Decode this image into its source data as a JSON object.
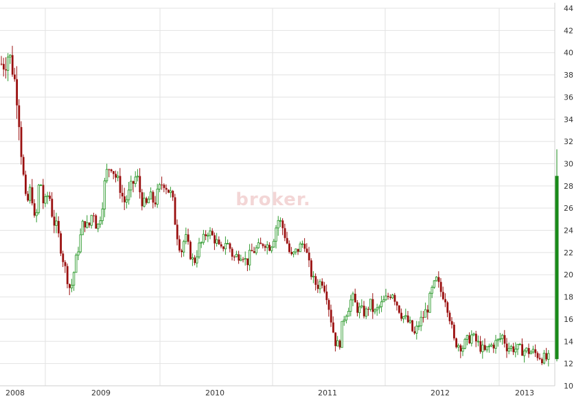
{
  "watermark": "broker.",
  "colors": {
    "up": "#2e9a2e",
    "down": "#9a0f0f",
    "grid": "#e2e2e2",
    "current_bar": "#1a8a1a",
    "background": "#ffffff"
  },
  "chart_data": {
    "type": "candlestick",
    "title": "",
    "xlabel": "",
    "ylabel": "",
    "ylim": [
      10,
      44
    ],
    "y_ticks": [
      10,
      12,
      14,
      16,
      18,
      20,
      22,
      24,
      26,
      28,
      30,
      32,
      34,
      36,
      38,
      40,
      42,
      44
    ],
    "x_labels": [
      "2008",
      "2009",
      "2010",
      "2011",
      "2012",
      "2013"
    ],
    "grid": true,
    "axis_position": "right",
    "series_path": [
      [
        "2008-01",
        39.0
      ],
      [
        "2008-01",
        40.0
      ],
      [
        "2008-02",
        38.0
      ],
      [
        "2008-02",
        35.5
      ],
      [
        "2008-03",
        30.0
      ],
      [
        "2008-03",
        26.0
      ],
      [
        "2008-04",
        28.0
      ],
      [
        "2008-04",
        24.0
      ],
      [
        "2008-05",
        29.0
      ],
      [
        "2008-05",
        26.0
      ],
      [
        "2008-06",
        27.5
      ],
      [
        "2008-06",
        25.0
      ],
      [
        "2008-07",
        24.0
      ],
      [
        "2008-07",
        22.0
      ],
      [
        "2008-08",
        20.0
      ],
      [
        "2008-08",
        18.5
      ],
      [
        "2008-09",
        21.0
      ],
      [
        "2008-09",
        23.0
      ],
      [
        "2008-10",
        25.0
      ],
      [
        "2008-10",
        24.0
      ],
      [
        "2008-11",
        26.0
      ],
      [
        "2008-11",
        24.0
      ],
      [
        "2008-12",
        26.0
      ],
      [
        "2008-12",
        29.0
      ],
      [
        "2009-01",
        30.0
      ],
      [
        "2009-01",
        29.0
      ],
      [
        "2009-02",
        28.0
      ],
      [
        "2009-02",
        26.5
      ],
      [
        "2009-03",
        27.0
      ],
      [
        "2009-03",
        28.0
      ],
      [
        "2009-04",
        29.0
      ],
      [
        "2009-04",
        27.0
      ],
      [
        "2009-05",
        26.0
      ],
      [
        "2009-05",
        27.0
      ],
      [
        "2009-06",
        26.5
      ],
      [
        "2009-07",
        28.5
      ],
      [
        "2009-08",
        27.0
      ],
      [
        "2009-08",
        24.0
      ],
      [
        "2009-09",
        22.0
      ],
      [
        "2009-09",
        23.5
      ],
      [
        "2009-10",
        22.0
      ],
      [
        "2009-10",
        21.0
      ],
      [
        "2009-11",
        22.5
      ],
      [
        "2009-11",
        23.0
      ],
      [
        "2009-12",
        24.0
      ],
      [
        "2010-01",
        23.0
      ],
      [
        "2010-01",
        22.0
      ],
      [
        "2010-02",
        23.0
      ],
      [
        "2010-02",
        22.5
      ],
      [
        "2010-03",
        21.5
      ],
      [
        "2010-04",
        22.0
      ],
      [
        "2010-04",
        21.0
      ],
      [
        "2010-05",
        22.0
      ],
      [
        "2010-06",
        22.5
      ],
      [
        "2010-06",
        23.0
      ],
      [
        "2010-07",
        22.5
      ],
      [
        "2010-07",
        23.0
      ],
      [
        "2010-08",
        25.0
      ],
      [
        "2010-08",
        24.5
      ],
      [
        "2010-09",
        23.0
      ],
      [
        "2010-09",
        21.5
      ],
      [
        "2010-10",
        22.0
      ],
      [
        "2010-11",
        23.0
      ],
      [
        "2010-11",
        21.0
      ],
      [
        "2010-12",
        19.5
      ],
      [
        "2010-12",
        19.0
      ],
      [
        "2011-01",
        19.5
      ],
      [
        "2011-01",
        18.5
      ],
      [
        "2011-02",
        16.0
      ],
      [
        "2011-02",
        14.0
      ],
      [
        "2011-03",
        13.5
      ],
      [
        "2011-03",
        16.0
      ],
      [
        "2011-04",
        17.0
      ],
      [
        "2011-04",
        18.0
      ],
      [
        "2011-05",
        17.0
      ],
      [
        "2011-06",
        16.5
      ],
      [
        "2011-06",
        17.5
      ],
      [
        "2011-07",
        16.5
      ],
      [
        "2011-08",
        17.5
      ],
      [
        "2011-09",
        18.5
      ],
      [
        "2011-09",
        17.5
      ],
      [
        "2011-10",
        16.5
      ],
      [
        "2011-11",
        15.5
      ],
      [
        "2011-11",
        14.5
      ],
      [
        "2011-12",
        15.5
      ],
      [
        "2012-01",
        17.0
      ],
      [
        "2012-01",
        18.5
      ],
      [
        "2012-02",
        19.5
      ],
      [
        "2012-02",
        18.5
      ],
      [
        "2012-03",
        18.0
      ],
      [
        "2012-03",
        16.5
      ],
      [
        "2012-04",
        14.0
      ],
      [
        "2012-05",
        13.5
      ],
      [
        "2012-05",
        14.0
      ],
      [
        "2012-06",
        14.5
      ],
      [
        "2012-07",
        13.5
      ],
      [
        "2012-07",
        13.0
      ],
      [
        "2012-08",
        13.5
      ],
      [
        "2012-09",
        14.0
      ],
      [
        "2012-09",
        14.5
      ],
      [
        "2012-10",
        13.5
      ],
      [
        "2013-01",
        13.0
      ],
      [
        "2013-02",
        12.5
      ],
      [
        "2013-02",
        12.4
      ]
    ],
    "current_bar": {
      "open": 12.4,
      "high": 31.3,
      "low": 12.2,
      "close": 28.9
    }
  }
}
